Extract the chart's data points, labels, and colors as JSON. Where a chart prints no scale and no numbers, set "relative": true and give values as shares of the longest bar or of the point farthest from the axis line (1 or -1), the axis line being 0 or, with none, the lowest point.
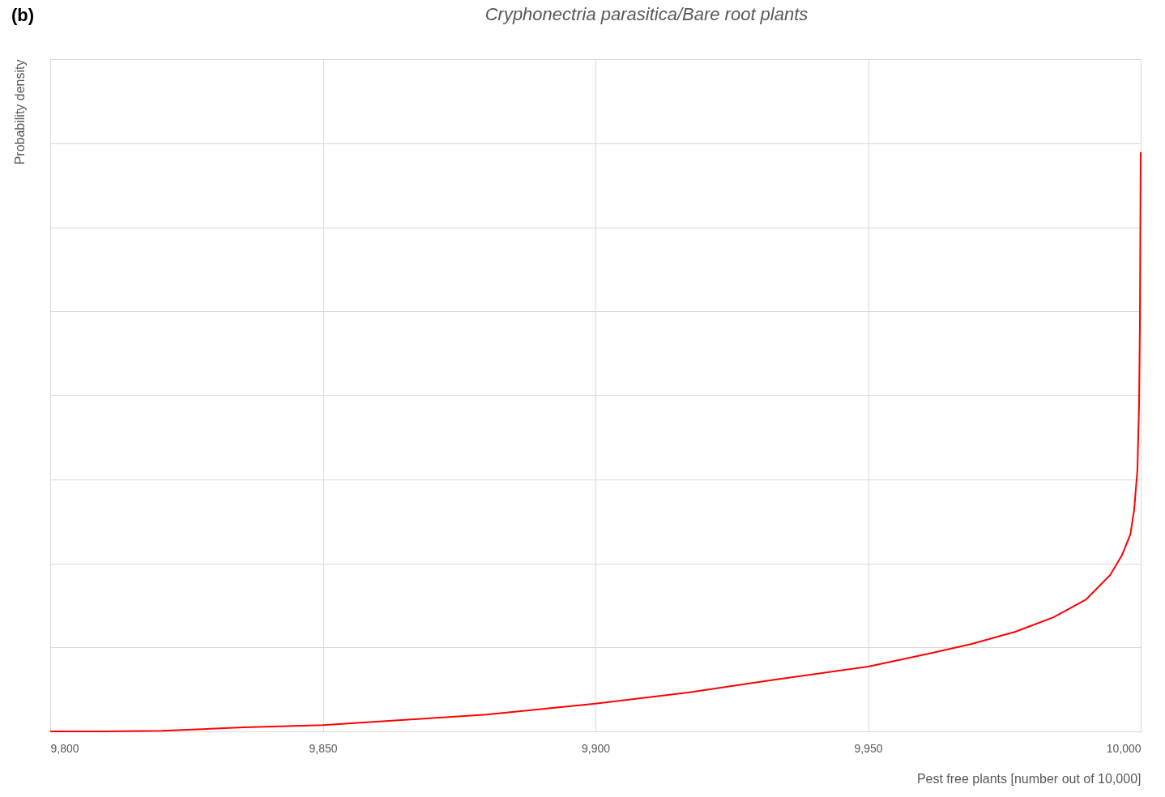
{
  "chart_data": {
    "type": "line",
    "title": "Cryphonectria parasitica/Bare root plants",
    "xlabel": "Pest free plants [number out of 10,000]",
    "ylabel": "Probability density",
    "annotations": [
      "(b)"
    ],
    "relative": true,
    "grid": true,
    "legend": false,
    "x": [
      9800,
      9810,
      9820.5,
      9835.4,
      9850,
      9865,
      9880,
      9900,
      9917,
      9932,
      9950,
      9962,
      9969,
      9977,
      9984,
      9990,
      9994.4,
      9996.6,
      9998.1,
      9998.8,
      9999.4,
      9999.7,
      9999.85,
      10000
    ],
    "series": [
      {
        "color": "#ff0000",
        "values": [
          0,
          0,
          0.001,
          0.007,
          0.011,
          0.02,
          0.029,
          0.048,
          0.067,
          0.088,
          0.112,
          0.136,
          0.151,
          0.172,
          0.197,
          0.228,
          0.27,
          0.305,
          0.34,
          0.382,
          0.452,
          0.564,
          0.703,
          1
        ]
      }
    ],
    "xlim": [
      9800,
      10000
    ],
    "xticks": [
      {
        "value": 9800,
        "label": "9,800"
      },
      {
        "value": 9850,
        "label": "9,850"
      },
      {
        "value": 9900,
        "label": "9,900"
      },
      {
        "value": 9950,
        "label": "9,950"
      },
      {
        "value": 10000,
        "label": "10,000"
      }
    ]
  }
}
